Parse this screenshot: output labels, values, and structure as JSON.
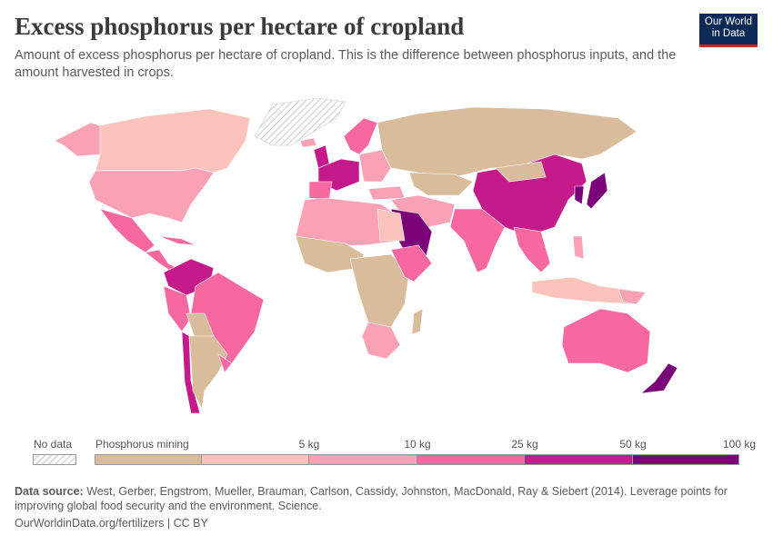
{
  "header": {
    "title": "Excess phosphorus per hectare of cropland",
    "subtitle": "Amount of excess phosphorus per hectare of cropland. This is the difference between phosphorus inputs, and the amount harvested in crops.",
    "logo_text": "Our World in Data"
  },
  "legend": {
    "no_data": "No data",
    "bins": [
      {
        "label": "Phosphorus mining",
        "color": "#d8bc9b"
      },
      {
        "label": "5 kg",
        "color": "#fbc3bb"
      },
      {
        "label": "10 kg",
        "color": "#f9a1b5"
      },
      {
        "label": "25 kg",
        "color": "#f768a1"
      },
      {
        "label": "50 kg",
        "color": "#c51b8a"
      },
      {
        "label": "100 kg",
        "color": "#7a0177"
      }
    ]
  },
  "footer": {
    "source_label": "Data source:",
    "source_text": "West, Gerber, Engstrom, Mueller, Brauman, Carlson, Cassidy, Johnston, MacDonald, Ray & Siebert (2014). Leverage points for improving global food security and the environment. Science.",
    "url": "OurWorldinData.org/fertilizers | CC BY"
  }
}
